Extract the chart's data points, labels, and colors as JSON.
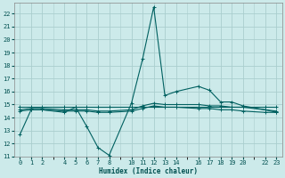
{
  "xlabel": "Humidex (Indice chaleur)",
  "background_color": "#cceaea",
  "grid_color": "#aacece",
  "line_color": "#006060",
  "xlim": [
    -0.5,
    23.5
  ],
  "ylim": [
    11,
    22.8
  ],
  "yticks": [
    11,
    12,
    13,
    14,
    15,
    16,
    17,
    18,
    19,
    20,
    21,
    22
  ],
  "xticks": [
    0,
    1,
    2,
    4,
    5,
    6,
    7,
    8,
    10,
    11,
    12,
    13,
    14,
    16,
    17,
    18,
    19,
    20,
    22,
    23
  ],
  "series": [
    {
      "x": [
        0,
        1,
        2,
        4,
        5,
        6,
        7,
        8,
        10,
        11,
        12,
        13,
        14,
        16,
        17,
        18,
        19,
        20,
        22,
        23
      ],
      "y": [
        12.7,
        14.6,
        14.6,
        14.4,
        14.8,
        13.3,
        11.7,
        11.1,
        15.1,
        18.5,
        22.5,
        15.7,
        16.0,
        16.4,
        16.1,
        15.2,
        15.2,
        14.9,
        14.6,
        14.4
      ]
    },
    {
      "x": [
        0,
        1,
        2,
        4,
        5,
        6,
        7,
        8,
        10,
        11,
        12,
        13,
        14,
        16,
        17,
        18,
        19,
        20,
        22,
        23
      ],
      "y": [
        14.8,
        14.8,
        14.8,
        14.8,
        14.8,
        14.8,
        14.8,
        14.8,
        14.8,
        14.8,
        14.8,
        14.8,
        14.8,
        14.8,
        14.8,
        14.8,
        14.8,
        14.8,
        14.8,
        14.8
      ]
    },
    {
      "x": [
        0,
        1,
        2,
        4,
        5,
        6,
        7,
        8,
        10,
        11,
        12,
        13,
        14,
        16,
        17,
        18,
        19,
        20,
        22,
        23
      ],
      "y": [
        14.6,
        14.7,
        14.7,
        14.6,
        14.6,
        14.6,
        14.5,
        14.5,
        14.6,
        14.9,
        15.1,
        15.0,
        15.0,
        15.0,
        14.9,
        14.9,
        14.8,
        14.8,
        14.6,
        14.5
      ]
    },
    {
      "x": [
        0,
        1,
        2,
        4,
        5,
        6,
        7,
        8,
        10,
        11,
        12,
        13,
        14,
        16,
        17,
        18,
        19,
        20,
        22,
        23
      ],
      "y": [
        14.5,
        14.6,
        14.6,
        14.5,
        14.5,
        14.5,
        14.4,
        14.4,
        14.5,
        14.7,
        14.9,
        14.8,
        14.8,
        14.7,
        14.7,
        14.6,
        14.6,
        14.5,
        14.4,
        14.4
      ]
    }
  ]
}
